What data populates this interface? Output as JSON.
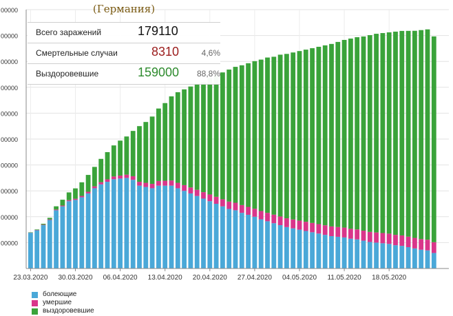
{
  "header": {
    "title": "(Германия)"
  },
  "stats": [
    {
      "label": "Всего заражений",
      "value": "179110",
      "pct": "",
      "color": "#111111"
    },
    {
      "label": "Смертельные случаи",
      "value": "8310",
      "pct": "4,6%",
      "color": "#9b1c1c"
    },
    {
      "label": "Выздоровевшие",
      "value": "159000",
      "pct": "88,8%",
      "color": "#2e8b2e"
    }
  ],
  "legend": [
    {
      "label": "болеющие",
      "color": "#4aa8d8"
    },
    {
      "label": "умершие",
      "color": "#d9368a"
    },
    {
      "label": "выздоровевшие",
      "color": "#3aa33a"
    }
  ],
  "chart_data": {
    "type": "bar",
    "stacked": true,
    "ylim": [
      0,
      200000
    ],
    "yticks": [
      {
        "value": 20000,
        "label": "00000"
      },
      {
        "value": 40000,
        "label": "00000"
      },
      {
        "value": 60000,
        "label": "00000"
      },
      {
        "value": 80000,
        "label": "00000"
      },
      {
        "value": 100000,
        "label": "00000"
      },
      {
        "value": 120000,
        "label": "00000"
      },
      {
        "value": 140000,
        "label": "00000"
      },
      {
        "value": 160000,
        "label": "00000"
      },
      {
        "value": 180000,
        "label": "00000"
      },
      {
        "value": 200000,
        "label": "00000"
      }
    ],
    "x_tick_labels": [
      {
        "index": 0,
        "label": "23.03.2020"
      },
      {
        "index": 7,
        "label": "30.03.2020"
      },
      {
        "index": 14,
        "label": "06.04.2020"
      },
      {
        "index": 21,
        "label": "13.04.2020"
      },
      {
        "index": 28,
        "label": "20.04.2020"
      },
      {
        "index": 35,
        "label": "27.04.2020"
      },
      {
        "index": 42,
        "label": "04.05.2020"
      },
      {
        "index": 49,
        "label": "11.05.2020"
      },
      {
        "index": 56,
        "label": "18.05.2020"
      }
    ],
    "series": [
      {
        "name": "болеющие",
        "color": "#4aa8d8",
        "values": [
          27600,
          29500,
          33500,
          37500,
          45000,
          48000,
          52000,
          53000,
          55000,
          58000,
          62000,
          65000,
          67000,
          69000,
          69500,
          70000,
          68500,
          64000,
          63000,
          62000,
          64000,
          64000,
          64000,
          62000,
          60000,
          58000,
          56000,
          54000,
          52000,
          50000,
          48000,
          46000,
          45000,
          43000,
          41500,
          40000,
          38000,
          36500,
          35000,
          33500,
          32000,
          31000,
          30000,
          29000,
          28000,
          27000,
          26000,
          25000,
          24500,
          24000,
          23000,
          22500,
          21500,
          20500,
          20000,
          19500,
          19000,
          18000,
          17500,
          16500,
          15500,
          14500,
          14000,
          12000
        ]
      },
      {
        "name": "умершие",
        "color": "#d9368a",
        "values": [
          150,
          250,
          350,
          450,
          550,
          650,
          800,
          900,
          1100,
          1300,
          1500,
          1700,
          1900,
          2100,
          2300,
          2500,
          2800,
          3000,
          3200,
          3400,
          3600,
          3800,
          4000,
          4200,
          4400,
          4600,
          4800,
          5000,
          5200,
          5400,
          5500,
          5700,
          5800,
          6000,
          6100,
          6200,
          6400,
          6500,
          6600,
          6700,
          6800,
          6900,
          7000,
          7100,
          7200,
          7300,
          7400,
          7500,
          7550,
          7600,
          7650,
          7700,
          7750,
          7800,
          7850,
          7900,
          7950,
          8000,
          8050,
          8100,
          8150,
          8200,
          8250,
          8310
        ]
      },
      {
        "name": "выздоровевшие",
        "color": "#3aa33a",
        "values": [
          250,
          400,
          700,
          1200,
          2500,
          4500,
          6000,
          8000,
          10500,
          13000,
          15000,
          18000,
          21000,
          24000,
          27000,
          29500,
          35000,
          43000,
          47000,
          52000,
          56000,
          60000,
          65000,
          70000,
          74000,
          78000,
          82000,
          85000,
          90000,
          94000,
          98000,
          102000,
          105000,
          108000,
          111000,
          114000,
          117000,
          120000,
          122000,
          125000,
          127000,
          129000,
          131000,
          133000,
          135000,
          137000,
          139000,
          141000,
          143000,
          145000,
          147000,
          148500,
          150000,
          152000,
          153500,
          154500,
          155500,
          157000,
          158000,
          159000,
          160000,
          161500,
          162500,
          159000
        ]
      }
    ]
  }
}
